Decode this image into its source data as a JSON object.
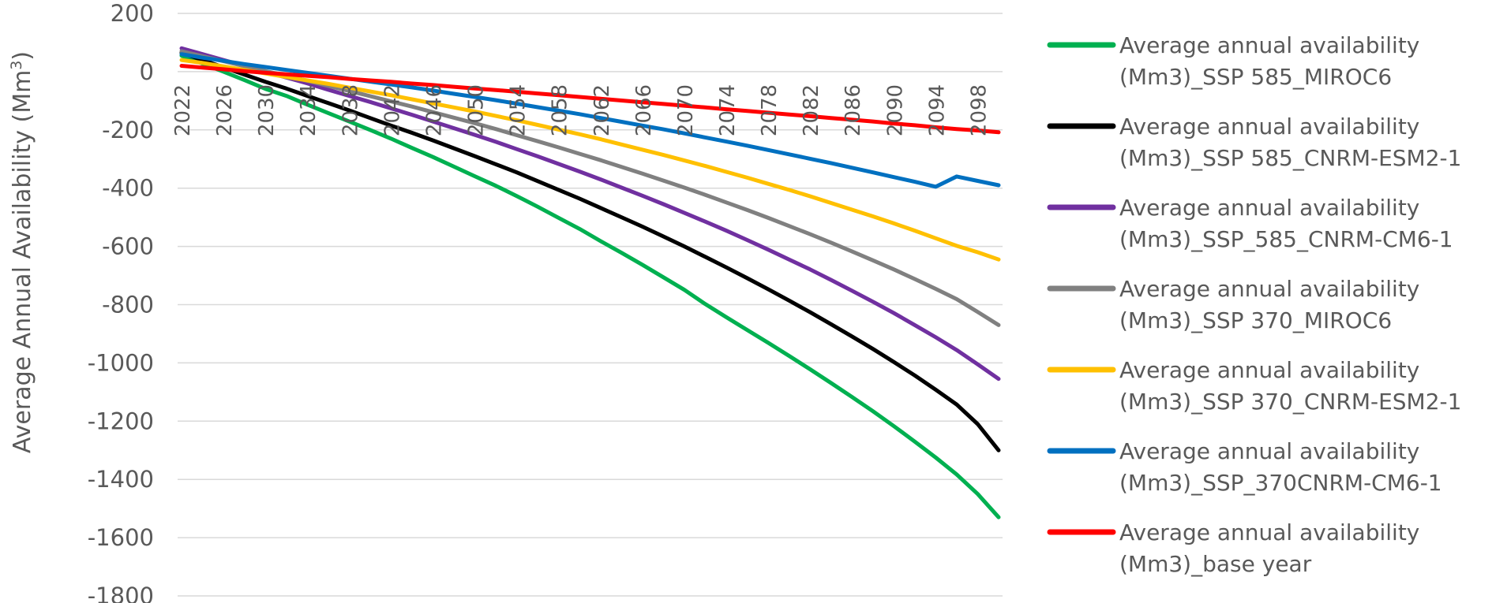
{
  "chart_data": {
    "type": "line",
    "title": "",
    "xlabel": "",
    "ylabel": "Average Annual Availability (Mm",
    "ylabel_sup": "3",
    "ylabel_close": ")",
    "x": [
      2022,
      2024,
      2026,
      2028,
      2030,
      2032,
      2034,
      2036,
      2038,
      2040,
      2042,
      2044,
      2046,
      2048,
      2050,
      2052,
      2054,
      2056,
      2058,
      2060,
      2062,
      2064,
      2066,
      2068,
      2070,
      2072,
      2074,
      2076,
      2078,
      2080,
      2082,
      2084,
      2086,
      2088,
      2090,
      2092,
      2094,
      2096,
      2098,
      2100
    ],
    "x_tick_labels": [
      "2022",
      "2026",
      "2030",
      "2034",
      "2038",
      "2042",
      "2046",
      "2050",
      "2054",
      "2058",
      "2062",
      "2066",
      "2070",
      "2074",
      "2078",
      "2082",
      "2086",
      "2090",
      "2094",
      "2098"
    ],
    "ylim": [
      -1800,
      200
    ],
    "y_ticks": [
      200,
      0,
      -200,
      -400,
      -600,
      -800,
      -1000,
      -1200,
      -1400,
      -1600,
      -1800
    ],
    "grid": true,
    "legend_position": "right",
    "series": [
      {
        "name_line1": "Average annual availability",
        "name_line2": "(Mm3)_SSP 585_MIROC6",
        "color": "#00b050",
        "values": [
          55,
          28,
          0,
          -29,
          -59,
          -83,
          -113,
          -142,
          -171,
          -200,
          -230,
          -262,
          -293,
          -326,
          -359,
          -392,
          -427,
          -464,
          -502,
          -540,
          -582,
          -622,
          -663,
          -706,
          -749,
          -798,
          -843,
          -887,
          -931,
          -976,
          -1022,
          -1069,
          -1117,
          -1166,
          -1217,
          -1270,
          -1325,
          -1383,
          -1450,
          -1530
        ]
      },
      {
        "name_line1": "Average annual availability",
        "name_line2": "(Mm3)_SSP 585_CNRM-ESM2-1",
        "color": "#000000",
        "values": [
          65,
          40,
          15,
          -10,
          -35,
          -58,
          -83,
          -108,
          -133,
          -159,
          -185,
          -210,
          -236,
          -263,
          -290,
          -318,
          -346,
          -376,
          -406,
          -436,
          -468,
          -500,
          -532,
          -566,
          -600,
          -636,
          -672,
          -709,
          -747,
          -786,
          -826,
          -867,
          -909,
          -952,
          -997,
          -1043,
          -1092,
          -1143,
          -1210,
          -1300
        ]
      },
      {
        "name_line1": "Average annual availability",
        "name_line2": "(Mm3)_SSP_585_CNRM-CM6-1",
        "color": "#7030a0",
        "values": [
          80,
          60,
          40,
          20,
          0,
          -20,
          -40,
          -62,
          -83,
          -104,
          -126,
          -148,
          -171,
          -194,
          -217,
          -241,
          -266,
          -291,
          -317,
          -343,
          -370,
          -398,
          -426,
          -455,
          -485,
          -515,
          -546,
          -578,
          -611,
          -645,
          -679,
          -715,
          -752,
          -790,
          -829,
          -870,
          -912,
          -956,
          -1005,
          -1055
        ]
      },
      {
        "name_line1": "Average annual availability",
        "name_line2": "(Mm3)_SSP 370_MIROC6",
        "color": "#808080",
        "values": [
          70,
          53,
          36,
          19,
          2,
          -14,
          -31,
          -49,
          -66,
          -84,
          -102,
          -120,
          -139,
          -158,
          -177,
          -197,
          -218,
          -239,
          -260,
          -282,
          -304,
          -327,
          -350,
          -374,
          -398,
          -423,
          -449,
          -475,
          -502,
          -530,
          -558,
          -587,
          -617,
          -648,
          -679,
          -712,
          -746,
          -781,
          -825,
          -870
        ]
      },
      {
        "name_line1": "Average annual availability",
        "name_line2": "(Mm3)_SSP 370_CNRM-ESM2-1",
        "color": "#ffc000",
        "values": [
          40,
          30,
          18,
          6,
          -6,
          -18,
          -30,
          -42,
          -55,
          -68,
          -81,
          -95,
          -109,
          -123,
          -137,
          -152,
          -167,
          -183,
          -199,
          -215,
          -232,
          -250,
          -268,
          -286,
          -305,
          -324,
          -344,
          -364,
          -385,
          -406,
          -428,
          -451,
          -474,
          -497,
          -521,
          -546,
          -572,
          -598,
          -620,
          -645
        ]
      },
      {
        "name_line1": "Average annual availability",
        "name_line2": "(Mm3)_SSP_370CNRM-CM6-1",
        "color": "#0070c0",
        "values": [
          60,
          48,
          37,
          26,
          16,
          6,
          -4,
          -14,
          -24,
          -34,
          -44,
          -54,
          -65,
          -76,
          -87,
          -98,
          -110,
          -122,
          -134,
          -146,
          -159,
          -172,
          -185,
          -198,
          -212,
          -226,
          -240,
          -254,
          -269,
          -284,
          -299,
          -314,
          -330,
          -346,
          -362,
          -378,
          -395,
          -360,
          -375,
          -390
        ]
      },
      {
        "name_line1": "Average annual availability",
        "name_line2": "(Mm3)_base year",
        "color": "#ff0000",
        "values": [
          20,
          14,
          8,
          2,
          -4,
          -9,
          -14,
          -19,
          -25,
          -30,
          -35,
          -41,
          -46,
          -52,
          -58,
          -63,
          -69,
          -75,
          -81,
          -87,
          -93,
          -99,
          -105,
          -111,
          -117,
          -123,
          -129,
          -135,
          -141,
          -147,
          -153,
          -159,
          -165,
          -171,
          -178,
          -184,
          -191,
          -197,
          -202,
          -208
        ]
      }
    ]
  }
}
